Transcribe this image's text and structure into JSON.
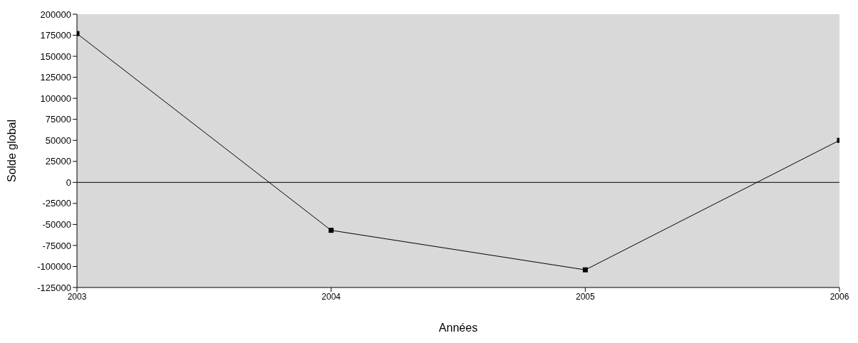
{
  "chart_data": {
    "type": "line",
    "xlabel": "Années",
    "ylabel": "Solde global",
    "x": [
      2003,
      2004,
      2005,
      2006
    ],
    "series": [
      {
        "color": "#000000",
        "values": [
          177000,
          -57000,
          -104000,
          50000
        ]
      }
    ],
    "xlim": [
      2003,
      2006
    ],
    "xticks": [
      2003,
      2004,
      2005,
      2006
    ],
    "ylim": [
      -125000,
      200000
    ],
    "yticks": [
      -125000,
      -100000,
      -75000,
      -50000,
      -25000,
      0,
      25000,
      50000,
      75000,
      100000,
      125000,
      150000,
      175000,
      200000
    ],
    "ref_lines": [
      {
        "axis": "y",
        "value": 0,
        "color": "#000000"
      }
    ],
    "marker": "square",
    "line_style": "solid",
    "grid": false,
    "legend": false
  }
}
